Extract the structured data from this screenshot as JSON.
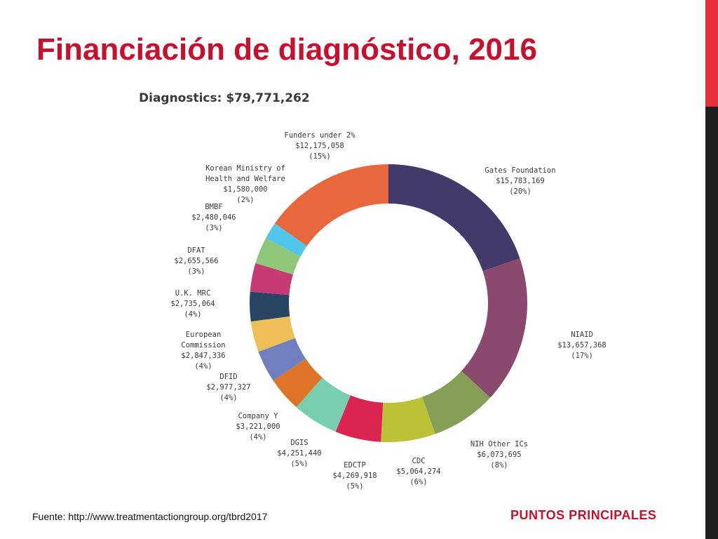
{
  "slide": {
    "title": "Financiación de diagnóstico, 2016",
    "source": "Fuente: http://www.treatmentactiongroup.org/tbrd2017",
    "footer_tag": "PUNTOS PRINCIPALES"
  },
  "colors": {
    "title": "#c8102e",
    "side_bar_top": "#e8303a",
    "side_bar_bottom": "#1f1f1f",
    "chart_text": "#3a3a3a"
  },
  "chart_data": {
    "type": "pie",
    "variant": "donut",
    "title": "Diagnostics: $79,771,262",
    "slices": [
      {
        "label": [
          "Gates Foundation"
        ],
        "amount": "$15,783,169",
        "pct": "(20%)",
        "value": 15783169,
        "color": "#433a6b"
      },
      {
        "label": [
          "NIAID"
        ],
        "amount": "$13,657,368",
        "pct": "(17%)",
        "value": 13657368,
        "color": "#8a4a6e"
      },
      {
        "label": [
          "NIH Other ICs"
        ],
        "amount": "$6,073,695",
        "pct": "(8%)",
        "value": 6073695,
        "color": "#85a056"
      },
      {
        "label": [
          "CDC"
        ],
        "amount": "$5,064,274",
        "pct": "(6%)",
        "value": 5064274,
        "color": "#bbc236"
      },
      {
        "label": [
          "EDCTP"
        ],
        "amount": "$4,269,918",
        "pct": "(5%)",
        "value": 4269918,
        "color": "#dc2450"
      },
      {
        "label": [
          "DGIS"
        ],
        "amount": "$4,251,440",
        "pct": "(5%)",
        "value": 4251440,
        "color": "#78cfb0"
      },
      {
        "label": [
          "Company Y"
        ],
        "amount": "$3,221,000",
        "pct": "(4%)",
        "value": 3221000,
        "color": "#de7428"
      },
      {
        "label": [
          "DFID"
        ],
        "amount": "$2,977,327",
        "pct": "(4%)",
        "value": 2977327,
        "color": "#6f7fbf"
      },
      {
        "label": [
          "European",
          "Commission"
        ],
        "amount": "$2,847,336",
        "pct": "(4%)",
        "value": 2847336,
        "color": "#efbf57"
      },
      {
        "label": [
          "U.K. MRC"
        ],
        "amount": "$2,735,064",
        "pct": "(4%)",
        "value": 2735064,
        "color": "#294563"
      },
      {
        "label": [
          "DFAT"
        ],
        "amount": "$2,655,566",
        "pct": "(3%)",
        "value": 2655566,
        "color": "#c63b74"
      },
      {
        "label": [
          "BMBF"
        ],
        "amount": "$2,480,046",
        "pct": "(3%)",
        "value": 2480046,
        "color": "#8ec779"
      },
      {
        "label": [
          "Korean Ministry of",
          "Health and Welfare"
        ],
        "amount": "$1,580,000",
        "pct": "(2%)",
        "value": 1580000,
        "color": "#4fc6ea"
      },
      {
        "label": [
          "Funders under 2%"
        ],
        "amount": "$12,175,058",
        "pct": "(15%)",
        "value": 12175058,
        "color": "#e8673d"
      }
    ]
  }
}
